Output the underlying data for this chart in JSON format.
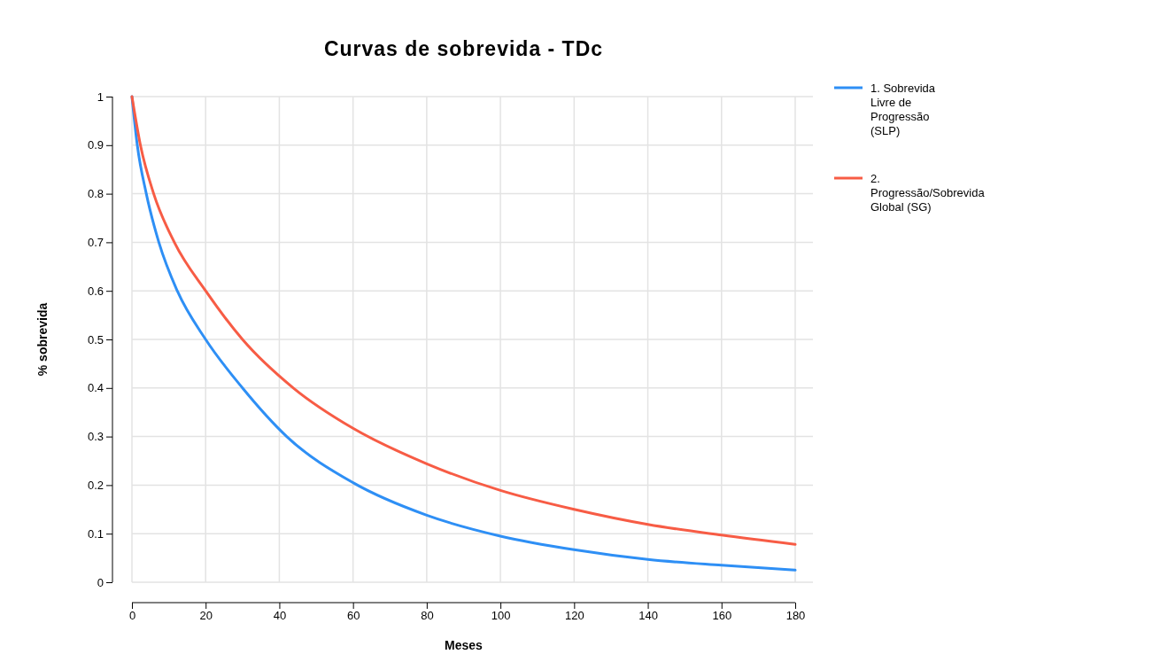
{
  "chart_data": {
    "type": "line",
    "title": "Curvas de sobrevida - TDc",
    "xlabel": "Meses",
    "ylabel": "% sobrevida",
    "xlim": [
      0,
      180
    ],
    "ylim": [
      0,
      1
    ],
    "xticks": [
      0,
      20,
      40,
      60,
      80,
      100,
      120,
      140,
      160,
      180
    ],
    "yticks": [
      0,
      0.1,
      0.2,
      0.3,
      0.4,
      0.5,
      0.6,
      0.7,
      0.8,
      0.9,
      1
    ],
    "grid": true,
    "legend": "top right",
    "marker": "none",
    "line_style": "solid",
    "series": [
      {
        "name": "1. Sobrevida Livre de Progressão (SLP)",
        "color": "#2e8ff5",
        "x": [
          0,
          1.45,
          3.9,
          7.3,
          12.3,
          20,
          30,
          42,
          60,
          80,
          100,
          120,
          140,
          160,
          180
        ],
        "values": [
          1,
          0.9,
          0.8,
          0.7,
          0.6,
          0.5,
          0.4,
          0.3,
          0.205,
          0.138,
          0.095,
          0.067,
          0.047,
          0.035,
          0.025
        ]
      },
      {
        "name": "2. Progressão/Sobrevida Global (SG)",
        "color": "#f75c45",
        "x": [
          0,
          2.3,
          5.9,
          11.5,
          20,
          30,
          43.8,
          60,
          80,
          100,
          120,
          140,
          160,
          180
        ],
        "values": [
          1,
          0.9,
          0.8,
          0.7,
          0.6,
          0.5,
          0.4,
          0.317,
          0.244,
          0.189,
          0.15,
          0.119,
          0.097,
          0.078
        ]
      }
    ]
  }
}
